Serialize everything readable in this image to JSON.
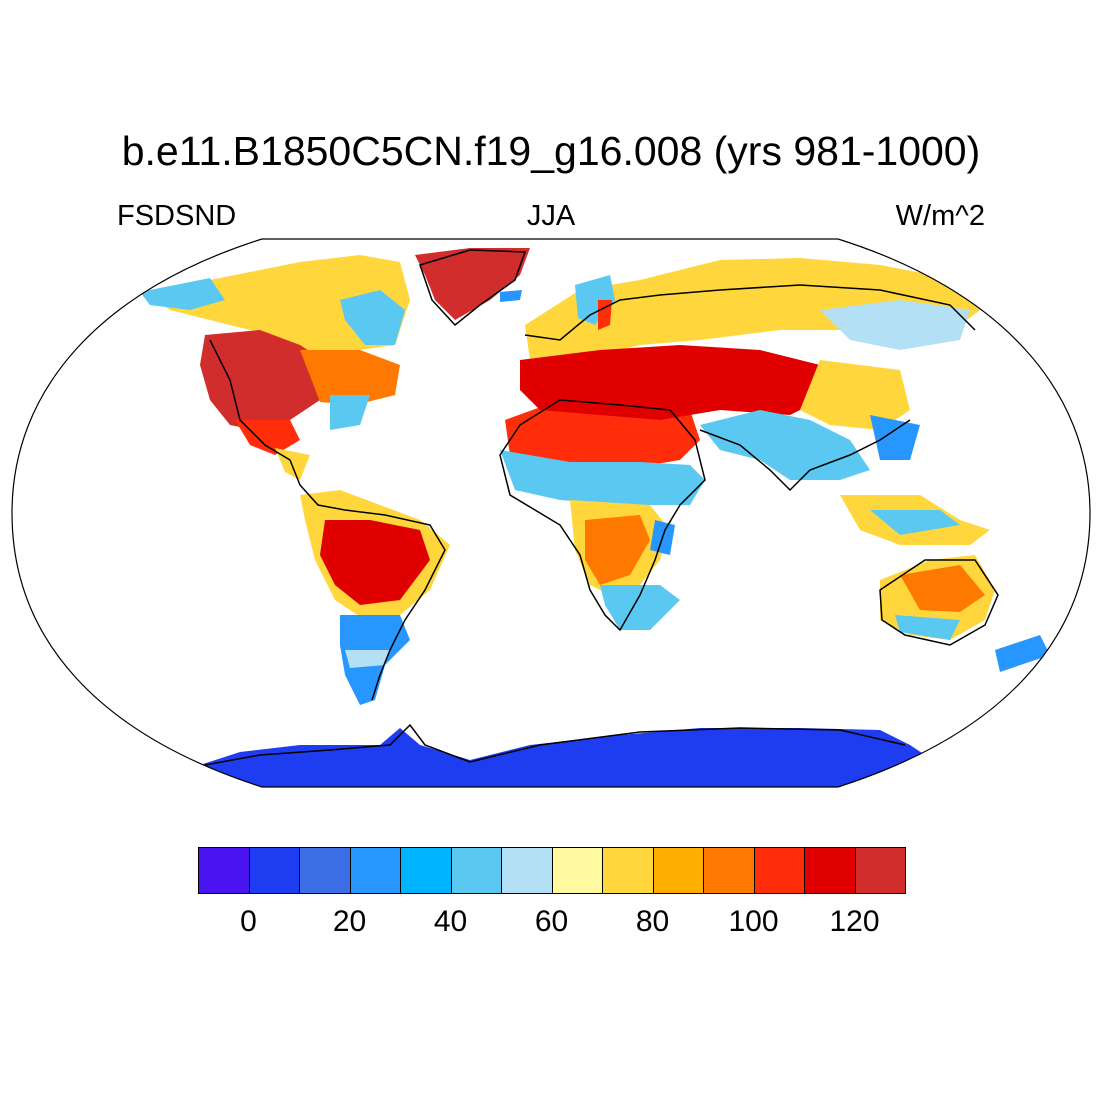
{
  "title": "b.e11.B1850C5CN.f19_g16.008 (yrs 981-1000)",
  "left_string": "FSDSND",
  "center_string": "JJA",
  "right_string": "W/m^2",
  "projection": "Robinson",
  "colorbar": {
    "colors": [
      "#4a14f0",
      "#1e3cf0",
      "#3c6ee6",
      "#2896ff",
      "#00b4ff",
      "#5ac8f0",
      "#b4e0f5",
      "#fffaa0",
      "#ffd73c",
      "#ffaf00",
      "#ff7800",
      "#ff2d0a",
      "#e10000",
      "#d22d2d"
    ],
    "tick_labels": [
      "0",
      "20",
      "40",
      "60",
      "80",
      "100",
      "120"
    ]
  },
  "regions": [
    {
      "name": "Greenland",
      "color": "#d22d2d"
    },
    {
      "name": "Western North America",
      "color": "#d22d2d"
    },
    {
      "name": "Canada",
      "color": "#ffd73c"
    },
    {
      "name": "Amazon",
      "color": "#e10000"
    },
    {
      "name": "Southern South America",
      "color": "#2896ff"
    },
    {
      "name": "Sahara",
      "color": "#ff2d0a"
    },
    {
      "name": "Sahel",
      "color": "#5ac8f0"
    },
    {
      "name": "Southern Africa",
      "color": "#ff7800"
    },
    {
      "name": "Europe",
      "color": "#ffd73c"
    },
    {
      "name": "Middle East",
      "color": "#e10000"
    },
    {
      "name": "Siberia",
      "color": "#ffd73c"
    },
    {
      "name": "South Asia",
      "color": "#5ac8f0"
    },
    {
      "name": "Australia",
      "color": "#ff7800"
    },
    {
      "name": "Antarctica",
      "color": "#1e3cf0"
    }
  ]
}
